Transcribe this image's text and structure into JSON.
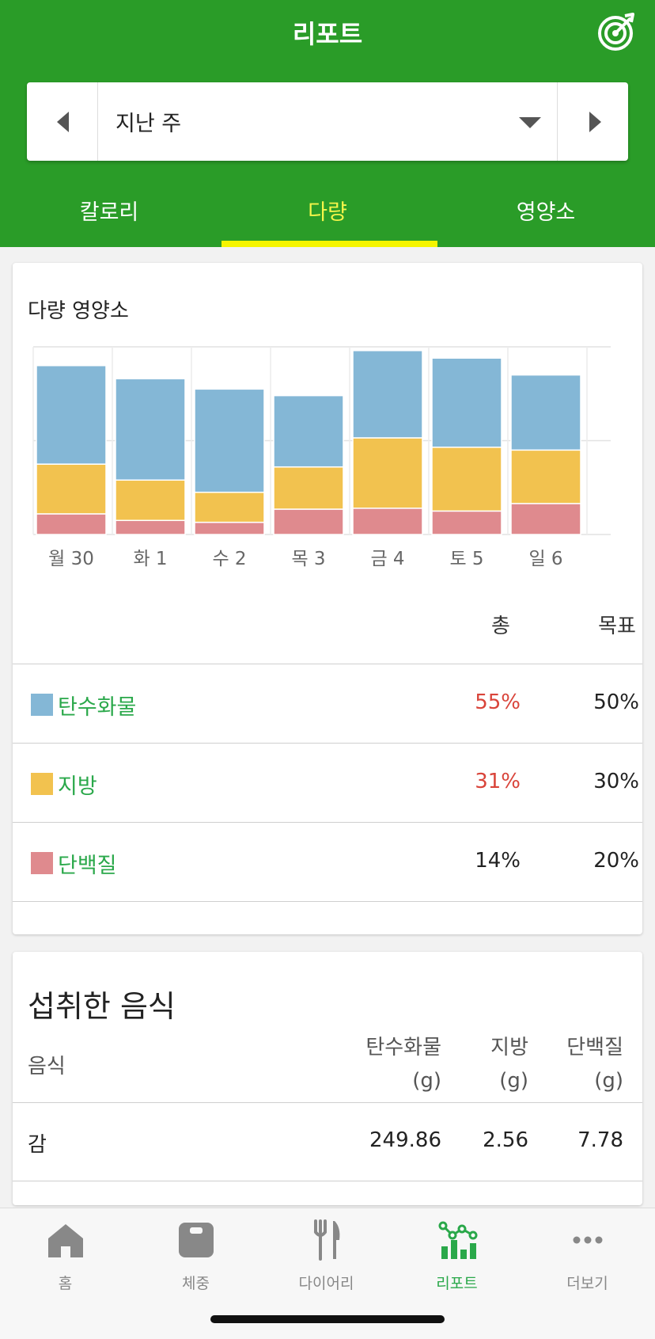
{
  "header": {
    "title": "리포트",
    "icon": "target-icon",
    "accent": "#2a9c28",
    "tab_highlight": "#f5f500"
  },
  "week_selector": {
    "label": "지난 주"
  },
  "tabs": [
    {
      "label": "칼로리",
      "active": false
    },
    {
      "label": "다량",
      "active": true
    },
    {
      "label": "영양소",
      "active": false
    }
  ],
  "macros_card": {
    "title": "다량 영양소",
    "col_total": "총",
    "col_goal": "목표",
    "rows": [
      {
        "name": "탄수화물",
        "total": "55%",
        "goal": "50%",
        "color": "#84b7d6",
        "total_color": "#d9443a"
      },
      {
        "name": "지방",
        "total": "31%",
        "goal": "30%",
        "color": "#f2c24f",
        "total_color": "#d9443a"
      },
      {
        "name": "단백질",
        "total": "14%",
        "goal": "20%",
        "color": "#df8a8e",
        "total_color": "#222222"
      }
    ]
  },
  "chart_data": {
    "type": "bar",
    "stacked": true,
    "categories": [
      "월 30",
      "화 1",
      "수 2",
      "목 3",
      "금 4",
      "토 5",
      "일 6"
    ],
    "series": [
      {
        "name": "단백질",
        "color": "#df8a8e",
        "values": [
          22,
          15,
          13,
          27,
          28,
          25,
          33
        ]
      },
      {
        "name": "지방",
        "color": "#f2c24f",
        "values": [
          53,
          43,
          32,
          45,
          75,
          68,
          57
        ]
      },
      {
        "name": "탄수화물",
        "color": "#84b7d6",
        "values": [
          105,
          108,
          110,
          76,
          93,
          95,
          80
        ]
      }
    ],
    "ylim": [
      0,
      200
    ],
    "grid": true,
    "legend": "none"
  },
  "foods_card": {
    "title": "섭취한 음식",
    "col_food": "음식",
    "col_carb": [
      "탄수화물",
      "(g)"
    ],
    "col_fat": [
      "지방",
      "(g)"
    ],
    "col_protein": [
      "단백질",
      "(g)"
    ],
    "rows": [
      {
        "name": "감",
        "carb": "249.86",
        "fat": "2.56",
        "protein": "7.78"
      }
    ]
  },
  "bottom_nav": [
    {
      "label": "홈",
      "icon": "home-icon",
      "active": false
    },
    {
      "label": "체중",
      "icon": "scale-icon",
      "active": false
    },
    {
      "label": "다이어리",
      "icon": "fork-knife-icon",
      "active": false
    },
    {
      "label": "리포트",
      "icon": "report-chart-icon",
      "active": true
    },
    {
      "label": "더보기",
      "icon": "more-dots-icon",
      "active": false
    }
  ]
}
